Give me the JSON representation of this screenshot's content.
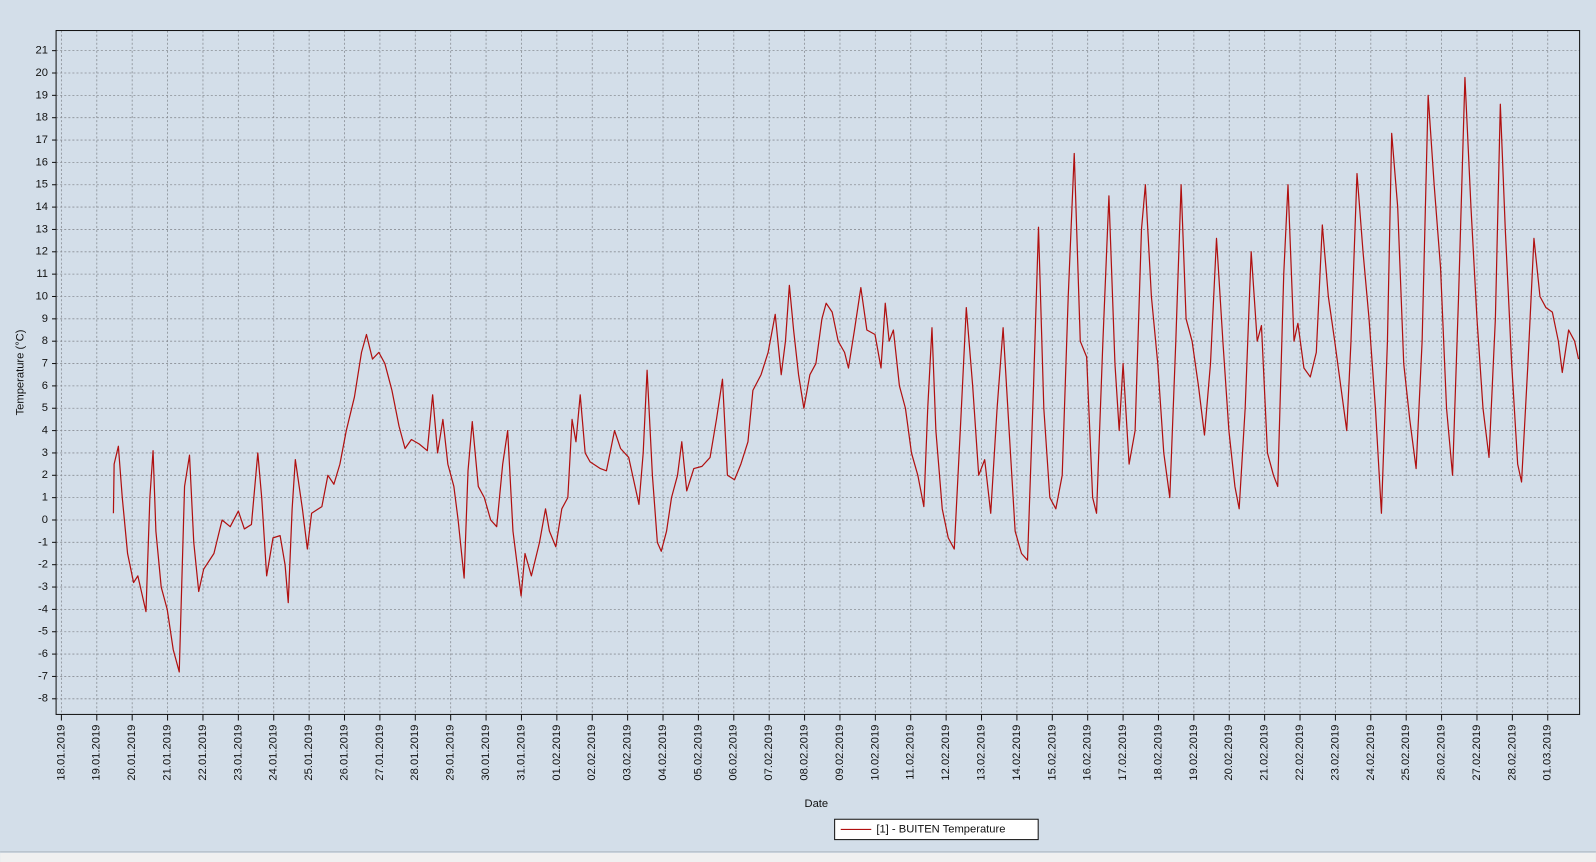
{
  "chart_data": {
    "type": "line",
    "x_label": "Date",
    "y_label": "Temperature (°C)",
    "xlim": [
      -0.15,
      42.9
    ],
    "ylim": [
      -8.7,
      21.9
    ],
    "xticks": [
      {
        "value": 0,
        "label": "18.01.2019"
      },
      {
        "value": 1,
        "label": "19.01.2019"
      },
      {
        "value": 2,
        "label": "20.01.2019"
      },
      {
        "value": 3,
        "label": "21.01.2019"
      },
      {
        "value": 4,
        "label": "22.01.2019"
      },
      {
        "value": 5,
        "label": "23.01.2019"
      },
      {
        "value": 6,
        "label": "24.01.2019"
      },
      {
        "value": 7,
        "label": "25.01.2019"
      },
      {
        "value": 8,
        "label": "26.01.2019"
      },
      {
        "value": 9,
        "label": "27.01.2019"
      },
      {
        "value": 10,
        "label": "28.01.2019"
      },
      {
        "value": 11,
        "label": "29.01.2019"
      },
      {
        "value": 12,
        "label": "30.01.2019"
      },
      {
        "value": 13,
        "label": "31.01.2019"
      },
      {
        "value": 14,
        "label": "01.02.2019"
      },
      {
        "value": 15,
        "label": "02.02.2019"
      },
      {
        "value": 16,
        "label": "03.02.2019"
      },
      {
        "value": 17,
        "label": "04.02.2019"
      },
      {
        "value": 18,
        "label": "05.02.2019"
      },
      {
        "value": 19,
        "label": "06.02.2019"
      },
      {
        "value": 20,
        "label": "07.02.2019"
      },
      {
        "value": 21,
        "label": "08.02.2019"
      },
      {
        "value": 22,
        "label": "09.02.2019"
      },
      {
        "value": 23,
        "label": "10.02.2019"
      },
      {
        "value": 24,
        "label": "11.02.2019"
      },
      {
        "value": 25,
        "label": "12.02.2019"
      },
      {
        "value": 26,
        "label": "13.02.2019"
      },
      {
        "value": 27,
        "label": "14.02.2019"
      },
      {
        "value": 28,
        "label": "15.02.2019"
      },
      {
        "value": 29,
        "label": "16.02.2019"
      },
      {
        "value": 30,
        "label": "17.02.2019"
      },
      {
        "value": 31,
        "label": "18.02.2019"
      },
      {
        "value": 32,
        "label": "19.02.2019"
      },
      {
        "value": 33,
        "label": "20.02.2019"
      },
      {
        "value": 34,
        "label": "21.02.2019"
      },
      {
        "value": 35,
        "label": "22.02.2019"
      },
      {
        "value": 36,
        "label": "23.02.2019"
      },
      {
        "value": 37,
        "label": "24.02.2019"
      },
      {
        "value": 38,
        "label": "25.02.2019"
      },
      {
        "value": 39,
        "label": "26.02.2019"
      },
      {
        "value": 40,
        "label": "27.02.2019"
      },
      {
        "value": 41,
        "label": "28.02.2019"
      },
      {
        "value": 42,
        "label": "01.03.2019"
      }
    ],
    "yticks": [
      -8,
      -7,
      -6,
      -5,
      -4,
      -3,
      -2,
      -1,
      0,
      1,
      2,
      3,
      4,
      5,
      6,
      7,
      8,
      9,
      10,
      11,
      12,
      13,
      14,
      15,
      16,
      17,
      18,
      19,
      20,
      21
    ],
    "grid": true,
    "legend": "bottom",
    "x": [
      1.47,
      1.49,
      1.61,
      1.72,
      1.87,
      2.04,
      2.16,
      2.39,
      2.5,
      2.59,
      2.67,
      2.82,
      2.99,
      3.16,
      3.33,
      3.48,
      3.62,
      3.74,
      3.88,
      4.02,
      4.31,
      4.54,
      4.77,
      5.0,
      5.17,
      5.37,
      5.55,
      5.66,
      5.8,
      5.98,
      6.18,
      6.32,
      6.41,
      6.52,
      6.61,
      6.81,
      6.95,
      7.07,
      7.36,
      7.53,
      7.7,
      7.87,
      8.05,
      8.28,
      8.48,
      8.62,
      8.79,
      8.97,
      9.14,
      9.34,
      9.54,
      9.71,
      9.89,
      10.11,
      10.34,
      10.49,
      10.63,
      10.78,
      10.92,
      11.09,
      11.21,
      11.38,
      11.49,
      11.61,
      11.78,
      11.95,
      12.13,
      12.3,
      12.47,
      12.61,
      12.76,
      12.99,
      13.1,
      13.28,
      13.51,
      13.68,
      13.79,
      13.97,
      14.14,
      14.31,
      14.43,
      14.54,
      14.66,
      14.8,
      14.94,
      15.23,
      15.4,
      15.63,
      15.8,
      16.03,
      16.21,
      16.32,
      16.44,
      16.55,
      16.7,
      16.84,
      16.95,
      17.1,
      17.24,
      17.41,
      17.53,
      17.67,
      17.87,
      18.1,
      18.33,
      18.51,
      18.68,
      18.82,
      19.02,
      19.2,
      19.4,
      19.54,
      19.77,
      19.97,
      20.17,
      20.34,
      20.46,
      20.57,
      20.69,
      20.83,
      20.98,
      21.15,
      21.32,
      21.49,
      21.61,
      21.78,
      21.95,
      22.13,
      22.24,
      22.41,
      22.59,
      22.76,
      22.99,
      23.16,
      23.28,
      23.39,
      23.51,
      23.68,
      23.85,
      24.02,
      24.2,
      24.37,
      24.48,
      24.6,
      24.71,
      24.89,
      25.06,
      25.23,
      25.4,
      25.57,
      25.75,
      25.92,
      26.09,
      26.26,
      26.44,
      26.61,
      26.78,
      26.95,
      27.13,
      27.3,
      27.47,
      27.61,
      27.76,
      27.93,
      28.1,
      28.28,
      28.45,
      28.62,
      28.79,
      28.97,
      29.14,
      29.25,
      29.43,
      29.6,
      29.77,
      29.89,
      30.0,
      30.17,
      30.34,
      30.52,
      30.63,
      30.8,
      30.98,
      31.15,
      31.32,
      31.49,
      31.64,
      31.78,
      31.95,
      32.13,
      32.3,
      32.47,
      32.64,
      32.82,
      32.99,
      33.16,
      33.28,
      33.45,
      33.62,
      33.79,
      33.91,
      34.08,
      34.25,
      34.37,
      34.54,
      34.66,
      34.83,
      34.94,
      35.11,
      35.29,
      35.46,
      35.63,
      35.8,
      35.98,
      36.15,
      36.32,
      36.44,
      36.61,
      36.78,
      36.95,
      37.13,
      37.3,
      37.47,
      37.59,
      37.76,
      37.93,
      38.1,
      38.28,
      38.45,
      38.62,
      38.79,
      38.97,
      39.14,
      39.31,
      39.48,
      39.66,
      39.83,
      40.0,
      40.17,
      40.34,
      40.52,
      40.66,
      40.8,
      40.98,
      41.15,
      41.26,
      41.44,
      41.61,
      41.78,
      41.95,
      42.13,
      42.3,
      42.41,
      42.59,
      42.76,
      42.87
    ],
    "series": [
      {
        "name": "[1] - BUITEN Temperature",
        "color": "#b01010",
        "values": [
          0.3,
          2.5,
          3.3,
          1,
          -1.5,
          -2.8,
          -2.5,
          -4.1,
          1,
          3.1,
          -0.5,
          -3,
          -4,
          -5.8,
          -6.8,
          1.5,
          2.9,
          -1,
          -3.2,
          -2.2,
          -1.5,
          0,
          -0.3,
          0.4,
          -0.4,
          -0.2,
          3,
          1,
          -2.5,
          -0.8,
          -0.7,
          -2,
          -3.7,
          0.5,
          2.7,
          0.5,
          -1.3,
          0.3,
          0.6,
          2,
          1.6,
          2.5,
          4,
          5.5,
          7.5,
          8.3,
          7.2,
          7.5,
          7,
          5.8,
          4.2,
          3.2,
          3.6,
          3.4,
          3.1,
          5.6,
          3,
          4.5,
          2.5,
          1.5,
          0,
          -2.6,
          2.2,
          4.4,
          1.5,
          1,
          0,
          -0.3,
          2.5,
          4,
          -0.5,
          -3.4,
          -1.5,
          -2.5,
          -1,
          0.5,
          -0.5,
          -1.2,
          0.5,
          1,
          4.5,
          3.5,
          5.6,
          3,
          2.6,
          2.3,
          2.2,
          4,
          3.2,
          2.8,
          1.5,
          0.7,
          3,
          6.7,
          2,
          -1,
          -1.4,
          -0.5,
          1,
          2,
          3.5,
          1.3,
          2.3,
          2.4,
          2.8,
          4.5,
          6.3,
          2,
          1.8,
          2.5,
          3.5,
          5.8,
          6.5,
          7.5,
          9.2,
          6.5,
          8,
          10.5,
          8.5,
          6.5,
          5,
          6.5,
          7,
          9,
          9.7,
          9.3,
          8,
          7.5,
          6.8,
          8.5,
          10.4,
          8.5,
          8.3,
          6.8,
          9.7,
          8,
          8.5,
          6,
          5,
          3,
          2,
          0.6,
          5,
          8.6,
          4,
          0.5,
          -0.8,
          -1.3,
          4,
          9.5,
          6,
          2,
          2.7,
          0.3,
          5,
          8.6,
          4,
          -0.5,
          -1.5,
          -1.8,
          6,
          13.1,
          5,
          1,
          0.5,
          2,
          10,
          16.4,
          8,
          7.3,
          1,
          0.3,
          8,
          14.5,
          7,
          4,
          7,
          2.5,
          4,
          13,
          15,
          10,
          7,
          3,
          1,
          8,
          15,
          9,
          8,
          6,
          3.8,
          7,
          12.6,
          8,
          4,
          1.5,
          0.5,
          5,
          12,
          8,
          8.7,
          3,
          2,
          1.5,
          11,
          15,
          8,
          8.8,
          6.8,
          6.4,
          7.5,
          13.2,
          10,
          8,
          6,
          4,
          8,
          15.5,
          12,
          9,
          5,
          0.3,
          8,
          17.3,
          14,
          7,
          4.5,
          2.3,
          8,
          19,
          15,
          11.3,
          5,
          2,
          10,
          19.8,
          14,
          9,
          5,
          2.8,
          9,
          18.6,
          13,
          7,
          2.5,
          1.7,
          7,
          12.6,
          10,
          9.5,
          9.3,
          8,
          6.6,
          8.5,
          8,
          7.2
        ]
      }
    ]
  }
}
